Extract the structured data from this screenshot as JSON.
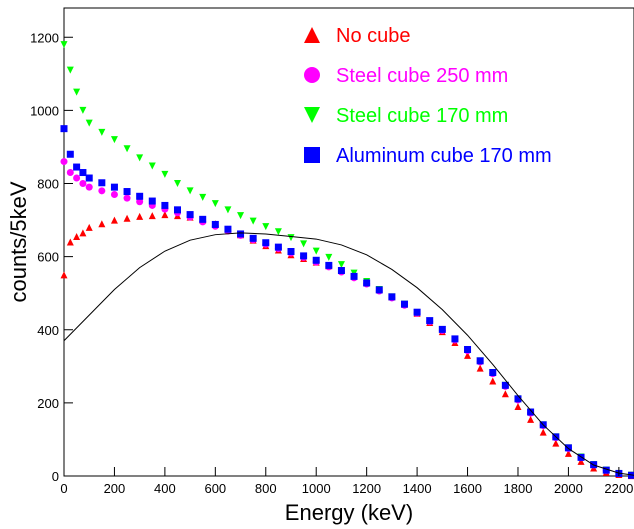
{
  "chart_data": {
    "type": "scatter",
    "xlabel": "Energy (keV)",
    "ylabel": "counts/5keV",
    "xlim": [
      0,
      2260
    ],
    "ylim": [
      0,
      1280
    ],
    "x_ticks": [
      0,
      200,
      400,
      600,
      800,
      1000,
      1200,
      1400,
      1600,
      1800,
      2000,
      2200
    ],
    "y_ticks": [
      0,
      200,
      400,
      600,
      800,
      1000,
      1200
    ],
    "grid": false,
    "legend_position": "top-right",
    "series": [
      {
        "name": "No cube",
        "marker": "triangle-up",
        "color": "#ff0000",
        "x": [
          0,
          25,
          50,
          75,
          100,
          150,
          200,
          250,
          300,
          350,
          400,
          450,
          500,
          550,
          600,
          650,
          700,
          750,
          800,
          850,
          900,
          950,
          1000,
          1050,
          1100,
          1150,
          1200,
          1250,
          1300,
          1350,
          1400,
          1450,
          1500,
          1550,
          1600,
          1650,
          1700,
          1750,
          1800,
          1850,
          1900,
          1950,
          2000,
          2050,
          2100,
          2150,
          2200,
          2250
        ],
        "y": [
          550,
          640,
          655,
          665,
          680,
          690,
          700,
          705,
          710,
          712,
          715,
          712,
          708,
          700,
          690,
          675,
          660,
          645,
          630,
          618,
          605,
          595,
          585,
          575,
          565,
          550,
          530,
          510,
          490,
          470,
          445,
          420,
          395,
          365,
          330,
          295,
          260,
          225,
          190,
          155,
          120,
          90,
          62,
          40,
          22,
          10,
          4,
          1
        ]
      },
      {
        "name": "Steel cube 250 mm",
        "marker": "circle",
        "color": "#ff00ff",
        "x": [
          0,
          25,
          50,
          75,
          100,
          150,
          200,
          250,
          300,
          350,
          400,
          450,
          500,
          550,
          600,
          650,
          700,
          750,
          800,
          850,
          900,
          950,
          1000,
          1050,
          1100,
          1150,
          1200,
          1250,
          1300,
          1350,
          1400,
          1450,
          1500,
          1550,
          1600,
          1650,
          1700,
          1750,
          1800,
          1850,
          1900,
          1950,
          2000,
          2050,
          2100,
          2150,
          2200,
          2250
        ],
        "y": [
          860,
          830,
          815,
          800,
          790,
          780,
          770,
          760,
          750,
          740,
          730,
          720,
          708,
          695,
          683,
          670,
          658,
          646,
          634,
          622,
          610,
          598,
          585,
          572,
          558,
          542,
          525,
          506,
          487,
          467,
          445,
          422,
          398,
          372,
          343,
          312,
          280,
          245,
          208,
          172,
          138,
          105,
          75,
          50,
          30,
          15,
          6,
          2
        ]
      },
      {
        "name": "Steel cube 170 mm",
        "marker": "triangle-down",
        "color": "#00ff00",
        "x": [
          0,
          25,
          50,
          75,
          100,
          150,
          200,
          250,
          300,
          350,
          400,
          450,
          500,
          550,
          600,
          650,
          700,
          750,
          800,
          850,
          900,
          950,
          1000,
          1050,
          1100,
          1150,
          1200,
          1250,
          1300,
          1350,
          1400,
          1450,
          1500,
          1550,
          1600,
          1650,
          1700,
          1750,
          1800,
          1850,
          1900,
          1950,
          2000,
          2050,
          2100,
          2150,
          2200,
          2250
        ],
        "y": [
          1180,
          1110,
          1050,
          1000,
          965,
          940,
          920,
          895,
          870,
          848,
          825,
          800,
          780,
          762,
          745,
          728,
          712,
          697,
          682,
          668,
          652,
          635,
          615,
          598,
          578,
          555,
          532,
          510,
          490,
          470,
          447,
          424,
          400,
          374,
          346,
          315,
          283,
          248,
          211,
          175,
          140,
          107,
          77,
          52,
          31,
          16,
          7,
          2
        ]
      },
      {
        "name": "Aluminum cube 170 mm",
        "marker": "square",
        "color": "#0000ff",
        "x": [
          0,
          25,
          50,
          75,
          100,
          150,
          200,
          250,
          300,
          350,
          400,
          450,
          500,
          550,
          600,
          650,
          700,
          750,
          800,
          850,
          900,
          950,
          1000,
          1050,
          1100,
          1150,
          1200,
          1250,
          1300,
          1350,
          1400,
          1450,
          1500,
          1550,
          1600,
          1650,
          1700,
          1750,
          1800,
          1850,
          1900,
          1950,
          2000,
          2050,
          2100,
          2150,
          2200,
          2250
        ],
        "y": [
          950,
          880,
          845,
          830,
          815,
          802,
          790,
          778,
          765,
          752,
          740,
          728,
          715,
          702,
          688,
          675,
          662,
          650,
          638,
          626,
          614,
          602,
          590,
          576,
          562,
          546,
          528,
          509,
          490,
          470,
          448,
          425,
          401,
          375,
          346,
          315,
          283,
          248,
          211,
          175,
          140,
          107,
          77,
          51,
          31,
          16,
          7,
          2
        ]
      },
      {
        "marker": "line",
        "color": "#000000",
        "x": [
          0,
          100,
          200,
          300,
          400,
          500,
          600,
          700,
          800,
          900,
          1000,
          1100,
          1200,
          1300,
          1400,
          1500,
          1600,
          1700,
          1800,
          1900,
          2000,
          2100,
          2200,
          2260
        ],
        "y": [
          370,
          440,
          510,
          570,
          615,
          645,
          660,
          665,
          662,
          655,
          648,
          632,
          605,
          565,
          515,
          455,
          385,
          305,
          220,
          140,
          75,
          30,
          8,
          2
        ]
      }
    ]
  }
}
